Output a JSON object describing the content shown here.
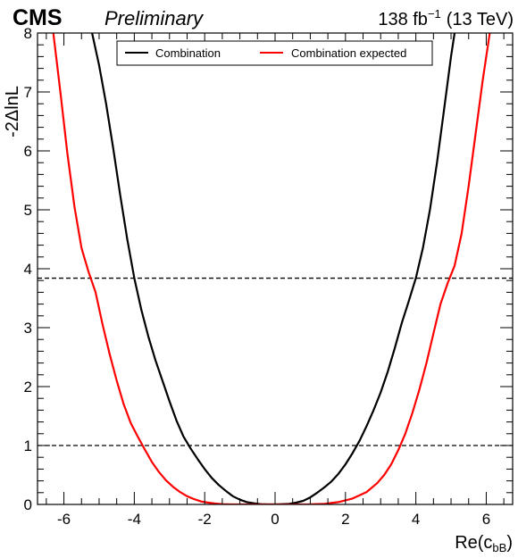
{
  "header": {
    "experiment": "CMS",
    "status": "Preliminary",
    "lumi": "138 fb",
    "lumi_exp": "−1",
    "energy": "(13 TeV)"
  },
  "chart_data": {
    "type": "line",
    "xlabel_main": "Re(c",
    "xlabel_sub": "bB",
    "xlabel_close": ")",
    "ylabel": "-2ΔlnL",
    "xlim": [
      -6.75,
      6.75
    ],
    "ylim": [
      0,
      8
    ],
    "xticks": [
      -6,
      -4,
      -2,
      0,
      2,
      4,
      6
    ],
    "yticks": [
      0,
      1,
      2,
      3,
      4,
      5,
      6,
      7,
      8
    ],
    "legend": {
      "position": "top-center"
    },
    "reference_lines": [
      1.0,
      3.84
    ],
    "series": [
      {
        "name": "Combination",
        "color": "#000000",
        "points": [
          [
            -5.2,
            8.0
          ],
          [
            -5.0,
            7.45
          ],
          [
            -4.8,
            6.8
          ],
          [
            -4.6,
            6.05
          ],
          [
            -4.4,
            5.25
          ],
          [
            -4.2,
            4.5
          ],
          [
            -4.0,
            3.84
          ],
          [
            -3.8,
            3.3
          ],
          [
            -3.6,
            2.85
          ],
          [
            -3.4,
            2.45
          ],
          [
            -3.2,
            2.1
          ],
          [
            -3.0,
            1.75
          ],
          [
            -2.8,
            1.42
          ],
          [
            -2.6,
            1.15
          ],
          [
            -2.4,
            0.95
          ],
          [
            -2.2,
            0.77
          ],
          [
            -2.0,
            0.6
          ],
          [
            -1.8,
            0.45
          ],
          [
            -1.6,
            0.33
          ],
          [
            -1.4,
            0.23
          ],
          [
            -1.2,
            0.14
          ],
          [
            -1.0,
            0.08
          ],
          [
            -0.8,
            0.04
          ],
          [
            -0.6,
            0.02
          ],
          [
            -0.4,
            0.005
          ],
          [
            -0.2,
            0.0
          ],
          [
            0.0,
            0.0
          ],
          [
            0.2,
            0.005
          ],
          [
            0.4,
            0.01
          ],
          [
            0.6,
            0.03
          ],
          [
            0.8,
            0.06
          ],
          [
            1.0,
            0.12
          ],
          [
            1.2,
            0.2
          ],
          [
            1.4,
            0.29
          ],
          [
            1.6,
            0.39
          ],
          [
            1.8,
            0.52
          ],
          [
            2.0,
            0.68
          ],
          [
            2.2,
            0.87
          ],
          [
            2.4,
            1.08
          ],
          [
            2.6,
            1.33
          ],
          [
            2.8,
            1.6
          ],
          [
            3.0,
            1.9
          ],
          [
            3.2,
            2.25
          ],
          [
            3.4,
            2.65
          ],
          [
            3.6,
            3.08
          ],
          [
            3.8,
            3.45
          ],
          [
            4.0,
            3.84
          ],
          [
            4.2,
            4.35
          ],
          [
            4.4,
            5.0
          ],
          [
            4.6,
            5.8
          ],
          [
            4.8,
            6.7
          ],
          [
            5.0,
            7.6
          ],
          [
            5.1,
            8.0
          ]
        ]
      },
      {
        "name": "Combination expected",
        "color": "#ff0000",
        "points": [
          [
            -6.3,
            8.0
          ],
          [
            -6.1,
            7.0
          ],
          [
            -5.9,
            5.95
          ],
          [
            -5.7,
            5.05
          ],
          [
            -5.5,
            4.35
          ],
          [
            -5.3,
            3.95
          ],
          [
            -5.1,
            3.6
          ],
          [
            -4.9,
            3.05
          ],
          [
            -4.7,
            2.55
          ],
          [
            -4.5,
            2.1
          ],
          [
            -4.3,
            1.7
          ],
          [
            -4.1,
            1.38
          ],
          [
            -3.9,
            1.15
          ],
          [
            -3.7,
            0.93
          ],
          [
            -3.5,
            0.72
          ],
          [
            -3.3,
            0.55
          ],
          [
            -3.1,
            0.41
          ],
          [
            -2.9,
            0.3
          ],
          [
            -2.7,
            0.21
          ],
          [
            -2.5,
            0.14
          ],
          [
            -2.3,
            0.09
          ],
          [
            -2.1,
            0.05
          ],
          [
            -1.9,
            0.03
          ],
          [
            -1.7,
            0.015
          ],
          [
            -1.5,
            0.005
          ],
          [
            -1.2,
            0.0
          ],
          [
            -0.5,
            0.0
          ],
          [
            0.0,
            0.0
          ],
          [
            0.5,
            0.0
          ],
          [
            1.0,
            0.002
          ],
          [
            1.4,
            0.01
          ],
          [
            1.8,
            0.04
          ],
          [
            2.2,
            0.1
          ],
          [
            2.6,
            0.21
          ],
          [
            2.9,
            0.36
          ],
          [
            3.1,
            0.5
          ],
          [
            3.3,
            0.68
          ],
          [
            3.5,
            0.92
          ],
          [
            3.7,
            1.2
          ],
          [
            3.9,
            1.55
          ],
          [
            4.1,
            1.95
          ],
          [
            4.3,
            2.4
          ],
          [
            4.5,
            2.9
          ],
          [
            4.7,
            3.4
          ],
          [
            4.9,
            3.75
          ],
          [
            5.1,
            4.05
          ],
          [
            5.3,
            4.6
          ],
          [
            5.5,
            5.4
          ],
          [
            5.7,
            6.3
          ],
          [
            5.9,
            7.2
          ],
          [
            6.1,
            8.0
          ]
        ]
      }
    ]
  }
}
